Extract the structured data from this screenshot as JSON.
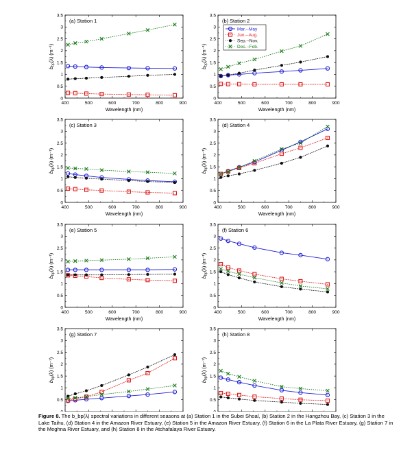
{
  "figure": {
    "caption_label": "Figure 8.",
    "caption_text": "The b_bp(λ) spectral variations in different seasons at (a) Station 1 in the Subei Shoal, (b) Station 2 in the Hangzhou Bay, (c) Station 3 in the Lake Taihu, (d) Station 4 in the Amazon River Estuary, (e) Station 5 in the Amazon River Estuary, (f) Station 6 in the La Plata River Estuary, (g) Station 7 in the Meghna River Estuary, and (h) Station 8 in the Atchafalaya River Estuary."
  },
  "colors": {
    "spring": "#1f1fd6",
    "summer": "#e01b1b",
    "autumn": "#111111",
    "winter": "#1a7a1a"
  },
  "legend": {
    "entries": [
      {
        "label": "Mar.--May",
        "color": "#1f1fd6",
        "marker": "circle"
      },
      {
        "label": "Jun.--Aug.",
        "color": "#e01b1b",
        "marker": "square"
      },
      {
        "label": "Sep.--Nov.",
        "color": "#111111",
        "marker": "dot"
      },
      {
        "label": "Dec.--Feb.",
        "color": "#1a7a1a",
        "marker": "cross"
      }
    ]
  },
  "chart_data": [
    {
      "type": "line",
      "title": "(a)  Station 1",
      "xlabel": "Wavelength (nm)",
      "ylabel": "b_bp(λ) (m⁻¹)",
      "xlim": [
        400,
        900
      ],
      "ylim": [
        0,
        3.5
      ],
      "xticks": [
        400,
        500,
        600,
        700,
        800,
        900
      ],
      "yticks": [
        0,
        0.5,
        1,
        1.5,
        2,
        2.5,
        3,
        3.5
      ],
      "x": [
        412,
        443,
        490,
        555,
        670,
        750,
        865
      ],
      "series": [
        {
          "name": "Mar.--May",
          "values": [
            1.35,
            1.33,
            1.31,
            1.29,
            1.27,
            1.26,
            1.25
          ]
        },
        {
          "name": "Jun.--Aug.",
          "values": [
            0.22,
            0.21,
            0.19,
            0.17,
            0.15,
            0.14,
            0.12
          ]
        },
        {
          "name": "Sep.--Nov.",
          "values": [
            0.8,
            0.82,
            0.84,
            0.87,
            0.92,
            0.96,
            1.0
          ]
        },
        {
          "name": "Dec.--Feb.",
          "values": [
            2.25,
            2.32,
            2.38,
            2.5,
            2.72,
            2.87,
            3.1
          ]
        }
      ]
    },
    {
      "type": "line",
      "title": "(b)  Station 2",
      "xlabel": "Wavelength (nm)",
      "ylabel": "b_bp(λ) (m⁻¹)",
      "xlim": [
        400,
        900
      ],
      "ylim": [
        0,
        3.5
      ],
      "xticks": [
        400,
        500,
        600,
        700,
        800,
        900
      ],
      "yticks": [
        0,
        0.5,
        1,
        1.5,
        2,
        2.5,
        3,
        3.5
      ],
      "x": [
        412,
        443,
        490,
        555,
        670,
        750,
        865
      ],
      "series": [
        {
          "name": "Mar.--May",
          "values": [
            0.93,
            0.97,
            1.0,
            1.05,
            1.12,
            1.17,
            1.25
          ]
        },
        {
          "name": "Jun.--Aug.",
          "values": [
            0.6,
            0.59,
            0.59,
            0.58,
            0.58,
            0.58,
            0.58
          ]
        },
        {
          "name": "Sep.--Nov.",
          "values": [
            0.93,
            0.97,
            1.05,
            1.18,
            1.38,
            1.52,
            1.75
          ]
        },
        {
          "name": "Dec.--Feb.",
          "values": [
            1.22,
            1.32,
            1.47,
            1.63,
            1.98,
            2.2,
            2.7
          ]
        }
      ]
    },
    {
      "type": "line",
      "title": "(c)  Station 3",
      "xlabel": "Wavelength (nm)",
      "ylabel": "b_bp(λ) (m⁻¹)",
      "xlim": [
        400,
        900
      ],
      "ylim": [
        0,
        3.5
      ],
      "xticks": [
        400,
        500,
        600,
        700,
        800,
        900
      ],
      "yticks": [
        0,
        0.5,
        1,
        1.5,
        2,
        2.5,
        3,
        3.5
      ],
      "x": [
        412,
        443,
        490,
        555,
        670,
        750,
        865
      ],
      "series": [
        {
          "name": "Mar.--May",
          "values": [
            1.22,
            1.17,
            1.12,
            1.05,
            0.97,
            0.92,
            0.87
          ]
        },
        {
          "name": "Jun.--Aug.",
          "values": [
            0.58,
            0.56,
            0.53,
            0.5,
            0.45,
            0.42,
            0.39
          ]
        },
        {
          "name": "Sep.--Nov.",
          "values": [
            1.08,
            1.05,
            1.02,
            0.98,
            0.92,
            0.88,
            0.84
          ]
        },
        {
          "name": "Dec.--Feb.",
          "values": [
            1.45,
            1.43,
            1.41,
            1.36,
            1.3,
            1.27,
            1.22
          ]
        }
      ]
    },
    {
      "type": "line",
      "title": "(d)  Station 4",
      "xlabel": "Wavelength (nm)",
      "ylabel": "b_bp(λ) (m⁻¹)",
      "xlim": [
        400,
        900
      ],
      "ylim": [
        0,
        3.5
      ],
      "xticks": [
        400,
        500,
        600,
        700,
        800,
        900
      ],
      "yticks": [
        0,
        0.5,
        1,
        1.5,
        2,
        2.5,
        3,
        3.5
      ],
      "x": [
        412,
        443,
        490,
        555,
        670,
        750,
        865
      ],
      "series": [
        {
          "name": "Mar.--May",
          "values": [
            1.2,
            1.32,
            1.48,
            1.7,
            2.2,
            2.55,
            3.1
          ]
        },
        {
          "name": "Jun.--Aug.",
          "values": [
            1.2,
            1.3,
            1.45,
            1.65,
            2.05,
            2.3,
            2.72
          ]
        },
        {
          "name": "Sep.--Nov.",
          "values": [
            1.05,
            1.12,
            1.2,
            1.35,
            1.65,
            1.9,
            2.38
          ]
        },
        {
          "name": "Dec.--Feb.",
          "values": [
            1.2,
            1.3,
            1.47,
            1.75,
            2.25,
            2.5,
            3.2
          ]
        }
      ]
    },
    {
      "type": "line",
      "title": "(e)  Station 5",
      "xlabel": "Wavelength (nm)",
      "ylabel": "b_bp(λ) (m⁻¹)",
      "xlim": [
        400,
        900
      ],
      "ylim": [
        0,
        3.5
      ],
      "xticks": [
        400,
        500,
        600,
        700,
        800,
        900
      ],
      "yticks": [
        0,
        0.5,
        1,
        1.5,
        2,
        2.5,
        3,
        3.5
      ],
      "x": [
        412,
        443,
        490,
        555,
        670,
        750,
        865
      ],
      "series": [
        {
          "name": "Mar.--May",
          "values": [
            1.58,
            1.58,
            1.58,
            1.58,
            1.58,
            1.58,
            1.6
          ]
        },
        {
          "name": "Jun.--Aug.",
          "values": [
            1.35,
            1.33,
            1.3,
            1.24,
            1.18,
            1.15,
            1.12
          ]
        },
        {
          "name": "Sep.--Nov.",
          "values": [
            1.37,
            1.37,
            1.37,
            1.37,
            1.38,
            1.39,
            1.4
          ]
        },
        {
          "name": "Dec.--Feb.",
          "values": [
            1.93,
            1.95,
            1.97,
            1.99,
            2.03,
            2.07,
            2.13
          ]
        }
      ]
    },
    {
      "type": "line",
      "title": "(f)  Station 6",
      "xlabel": "Wavelength (nm)",
      "ylabel": "b_bp(λ) (m⁻¹)",
      "xlim": [
        400,
        900
      ],
      "ylim": [
        0,
        3.5
      ],
      "xticks": [
        400,
        500,
        600,
        700,
        800,
        900
      ],
      "yticks": [
        0,
        0.5,
        1,
        1.5,
        2,
        2.5,
        3,
        3.5
      ],
      "x": [
        412,
        443,
        490,
        555,
        670,
        750,
        865
      ],
      "series": [
        {
          "name": "Mar.--May",
          "values": [
            2.9,
            2.8,
            2.68,
            2.52,
            2.3,
            2.2,
            2.03
          ]
        },
        {
          "name": "Jun.--Aug.",
          "values": [
            1.82,
            1.68,
            1.55,
            1.4,
            1.2,
            1.1,
            0.97
          ]
        },
        {
          "name": "Sep.--Nov.",
          "values": [
            1.5,
            1.38,
            1.24,
            1.07,
            0.87,
            0.77,
            0.65
          ]
        },
        {
          "name": "Dec.--Feb.",
          "values": [
            1.62,
            1.52,
            1.4,
            1.25,
            1.03,
            0.9,
            0.78
          ]
        }
      ]
    },
    {
      "type": "line",
      "title": "(g)  Station 7",
      "xlabel": "Wavelength (nm)",
      "ylabel": "b_bp(λ) (m⁻¹)",
      "xlim": [
        400,
        900
      ],
      "ylim": [
        0,
        3.5
      ],
      "xticks": [
        400,
        500,
        600,
        700,
        800,
        900
      ],
      "yticks": [
        0,
        0.5,
        1,
        1.5,
        2,
        2.5,
        3,
        3.5
      ],
      "x": [
        412,
        443,
        490,
        555,
        670,
        750,
        865
      ],
      "series": [
        {
          "name": "Mar.--May",
          "values": [
            0.45,
            0.48,
            0.52,
            0.57,
            0.66,
            0.72,
            0.83
          ]
        },
        {
          "name": "Jun.--Aug.",
          "values": [
            0.47,
            0.53,
            0.63,
            0.83,
            1.32,
            1.62,
            2.25
          ]
        },
        {
          "name": "Sep.--Nov.",
          "values": [
            0.65,
            0.75,
            0.88,
            1.1,
            1.55,
            1.88,
            2.4
          ]
        },
        {
          "name": "Dec.--Feb.",
          "values": [
            0.55,
            0.58,
            0.63,
            0.72,
            0.85,
            0.95,
            1.1
          ]
        }
      ]
    },
    {
      "type": "line",
      "title": "(h)  Station 8",
      "xlabel": "Wavelength (nm)",
      "ylabel": "b_bp(λ) (m⁻¹)",
      "xlim": [
        400,
        900
      ],
      "ylim": [
        0,
        3.5
      ],
      "xticks": [
        400,
        500,
        600,
        700,
        800,
        900
      ],
      "yticks": [
        0,
        0.5,
        1,
        1.5,
        2,
        2.5,
        3,
        3.5
      ],
      "x": [
        412,
        443,
        490,
        555,
        670,
        750,
        865
      ],
      "series": [
        {
          "name": "Mar.--May",
          "values": [
            1.43,
            1.35,
            1.24,
            1.1,
            0.9,
            0.8,
            0.7
          ]
        },
        {
          "name": "Jun.--Aug.",
          "values": [
            0.78,
            0.75,
            0.7,
            0.63,
            0.55,
            0.5,
            0.46
          ]
        },
        {
          "name": "Sep.--Nov.",
          "values": [
            0.62,
            0.58,
            0.53,
            0.47,
            0.4,
            0.35,
            0.3
          ]
        },
        {
          "name": "Dec.--Feb.",
          "values": [
            1.72,
            1.6,
            1.47,
            1.3,
            1.05,
            0.97,
            0.88
          ]
        }
      ]
    }
  ]
}
